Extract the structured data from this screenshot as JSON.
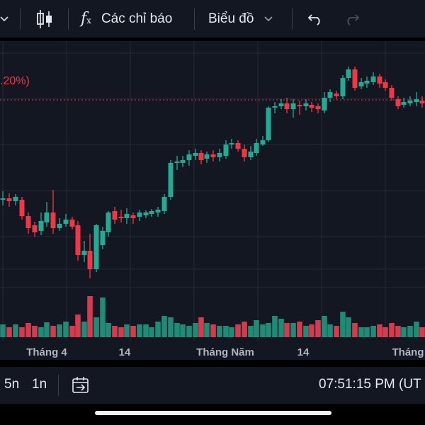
{
  "toolbar": {
    "indicators_label": "Các chỉ báo",
    "chart_type_label": "Biểu đồ"
  },
  "chart_data": {
    "type": "candlestick",
    "price_change_text": ".20%)",
    "price_line_color": "#f23645",
    "up_color": "#22ab94",
    "down_color": "#f23645",
    "x_axis_labels": [
      "Tháng 4",
      "14",
      "Tháng Năm",
      "14",
      "Tháng"
    ]
  },
  "bottombar": {
    "ranges": [
      "5n",
      "1n"
    ],
    "time_label": "07:51:15 PM (UT"
  }
}
